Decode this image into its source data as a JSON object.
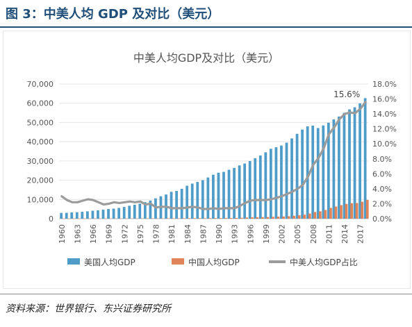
{
  "figure_title": "图 3：中美人均 GDP 及对比（美元）",
  "source_text": "资料来源：世界银行、东兴证券研究所",
  "colors": {
    "us_bar": "#4f9cc9",
    "cn_bar": "#e0845a",
    "ratio_line": "#9b9b9b",
    "title_blue": "#1f4e79"
  },
  "chart_data": {
    "type": "bar",
    "title": "中美人均GDP及对比（美元）",
    "xlabel": "",
    "ylabel": "",
    "legend_position": "bottom",
    "grid": true,
    "x": [
      1960,
      1961,
      1962,
      1963,
      1964,
      1965,
      1966,
      1967,
      1968,
      1969,
      1970,
      1971,
      1972,
      1973,
      1974,
      1975,
      1976,
      1977,
      1978,
      1979,
      1980,
      1981,
      1982,
      1983,
      1984,
      1985,
      1986,
      1987,
      1988,
      1989,
      1990,
      1991,
      1992,
      1993,
      1994,
      1995,
      1996,
      1997,
      1998,
      1999,
      2000,
      2001,
      2002,
      2003,
      2004,
      2005,
      2006,
      2007,
      2008,
      2009,
      2010,
      2011,
      2012,
      2013,
      2014,
      2015,
      2016,
      2017,
      2018
    ],
    "x_tick_labels": [
      "1960",
      "1963",
      "1966",
      "1969",
      "1972",
      "1975",
      "1978",
      "1981",
      "1984",
      "1987",
      "1990",
      "1993",
      "1996",
      "1999",
      "2002",
      "2005",
      "2008",
      "2011",
      "2014",
      "2017"
    ],
    "y_left": {
      "min": 0,
      "max": 70000,
      "ticks": [
        "0",
        "10,000",
        "20,000",
        "30,000",
        "40,000",
        "50,000",
        "60,000",
        "70,000"
      ]
    },
    "y_right": {
      "min": 0,
      "max": 18,
      "ticks": [
        "0.0%",
        "2.0%",
        "4.0%",
        "6.0%",
        "8.0%",
        "10.0%",
        "12.0%",
        "14.0%",
        "16.0%",
        "18.0%"
      ]
    },
    "series": [
      {
        "name": "美国人均GDP",
        "type": "bar",
        "axis": "left",
        "values": [
          3007,
          3067,
          3244,
          3375,
          3574,
          3828,
          4146,
          4336,
          4696,
          5032,
          5234,
          5609,
          6094,
          6726,
          7226,
          7801,
          8592,
          9453,
          10565,
          11674,
          12575,
          13976,
          14434,
          15544,
          17121,
          18237,
          19071,
          20039,
          21418,
          22857,
          23889,
          24342,
          25419,
          26387,
          27695,
          28691,
          29968,
          31459,
          32854,
          34515,
          36335,
          37133,
          38023,
          39496,
          41713,
          44115,
          46299,
          47976,
          48383,
          47100,
          48467,
          49883,
          51603,
          53107,
          55033,
          56803,
          57904,
          59928,
          62641
        ]
      },
      {
        "name": "中国人均GDP",
        "type": "bar",
        "axis": "left",
        "values": [
          89,
          76,
          70,
          74,
          85,
          98,
          104,
          97,
          91,
          100,
          113,
          119,
          132,
          157,
          160,
          178,
          165,
          185,
          156,
          184,
          195,
          197,
          203,
          225,
          251,
          294,
          282,
          252,
          284,
          311,
          318,
          333,
          366,
          377,
          473,
          610,
          709,
          782,
          829,
          873,
          959,
          1053,
          1149,
          1289,
          1509,
          1753,
          2099,
          2694,
          3468,
          3832,
          4550,
          5618,
          6317,
          7051,
          7679,
          8067,
          8148,
          8827,
          9771
        ]
      },
      {
        "name": "中美人均GDP占比",
        "type": "line",
        "axis": "right",
        "values": [
          3.0,
          2.5,
          2.2,
          2.2,
          2.4,
          2.6,
          2.5,
          2.2,
          1.9,
          2.0,
          2.2,
          2.1,
          2.2,
          2.3,
          2.2,
          2.3,
          1.9,
          2.0,
          1.5,
          1.6,
          1.6,
          1.4,
          1.4,
          1.4,
          1.5,
          1.6,
          1.5,
          1.3,
          1.3,
          1.4,
          1.3,
          1.4,
          1.4,
          1.4,
          1.7,
          2.1,
          2.4,
          2.5,
          2.5,
          2.5,
          2.6,
          2.8,
          3.0,
          3.3,
          3.6,
          4.0,
          4.5,
          5.6,
          7.2,
          8.1,
          9.4,
          11.3,
          12.2,
          13.3,
          14.0,
          14.2,
          14.1,
          14.7,
          15.6
        ]
      }
    ],
    "annotations": [
      {
        "text": "15.6%",
        "x": 2018,
        "series": "中美人均GDP占比"
      }
    ]
  }
}
